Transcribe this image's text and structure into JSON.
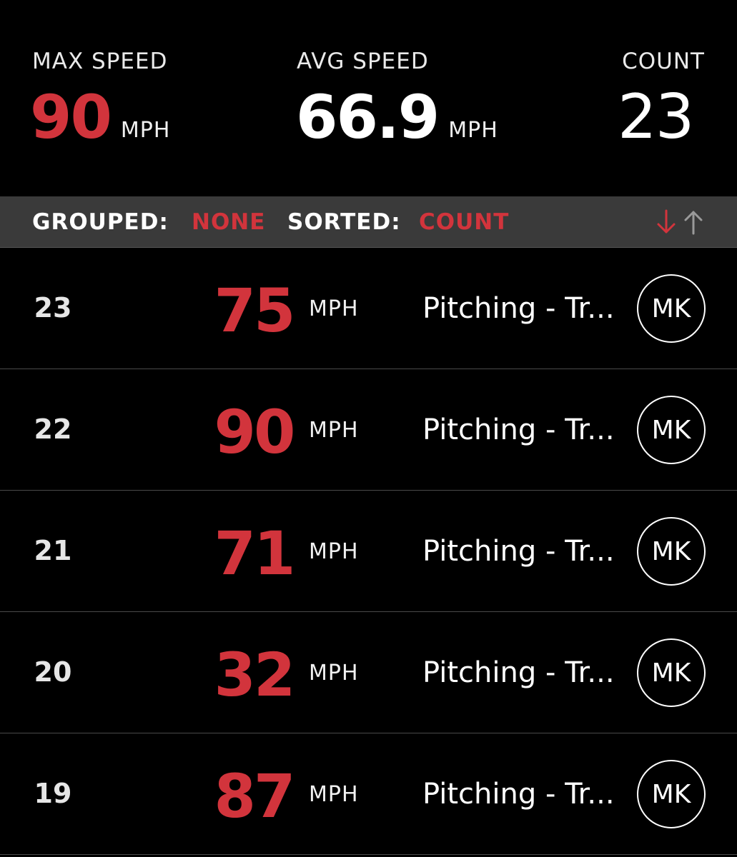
{
  "summary": {
    "max_speed": {
      "label": "MAX SPEED",
      "value": "90",
      "unit": "MPH"
    },
    "avg_speed": {
      "label": "AVG SPEED",
      "value": "66.9",
      "unit": "MPH"
    },
    "count": {
      "label": "COUNT",
      "value": "23"
    }
  },
  "filter_bar": {
    "grouped_label": "GROUPED:",
    "grouped_value": "NONE",
    "sorted_label": "SORTED:",
    "sorted_value": "COUNT",
    "sort_icons": [
      "arrow-down-icon",
      "arrow-up-icon"
    ]
  },
  "rows": [
    {
      "num": "23",
      "speed": "75",
      "unit": "MPH",
      "activity": "Pitching - Tr...",
      "avatar": "MK"
    },
    {
      "num": "22",
      "speed": "90",
      "unit": "MPH",
      "activity": "Pitching - Tr...",
      "avatar": "MK"
    },
    {
      "num": "21",
      "speed": "71",
      "unit": "MPH",
      "activity": "Pitching - Tr...",
      "avatar": "MK"
    },
    {
      "num": "20",
      "speed": "32",
      "unit": "MPH",
      "activity": "Pitching - Tr...",
      "avatar": "MK"
    },
    {
      "num": "19",
      "speed": "87",
      "unit": "MPH",
      "activity": "Pitching - Tr...",
      "avatar": "MK"
    }
  ],
  "colors": {
    "accent": "#d2343c",
    "background": "#000000",
    "filter_bar_bg": "#3a3a3a",
    "text": "#ffffff",
    "inactive_arrow": "#9a9a9a"
  }
}
